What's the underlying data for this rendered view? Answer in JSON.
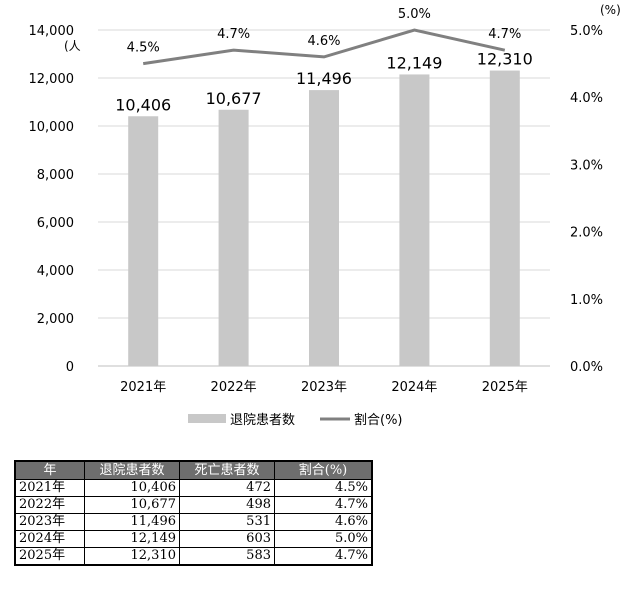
{
  "chart_data": {
    "type": "bar+line",
    "categories": [
      "2021年",
      "2022年",
      "2023年",
      "2024年",
      "2025年"
    ],
    "series": [
      {
        "name": "退院患者数",
        "type": "bar",
        "axis": "left",
        "values": [
          10406,
          10677,
          11496,
          12149,
          12310
        ],
        "labels": [
          "10,406",
          "10,677",
          "11,496",
          "12,149",
          "12,310"
        ],
        "color": "#c8c8c8"
      },
      {
        "name": "割合(%)",
        "type": "line",
        "axis": "right",
        "values": [
          4.5,
          4.7,
          4.6,
          5.0,
          4.7
        ],
        "labels": [
          "4.5%",
          "4.7%",
          "4.6%",
          "5.0%",
          "4.7%"
        ],
        "color": "#808080"
      }
    ],
    "y_left": {
      "unit": "(人",
      "ylim": [
        0,
        14000
      ],
      "ticks": [
        "0",
        "2,000",
        "4,000",
        "6,000",
        "8,000",
        "10,000",
        "12,000",
        "14,000"
      ]
    },
    "y_right": {
      "unit": "(%)",
      "ylim": [
        0,
        5.0
      ],
      "ticks": [
        "0.0%",
        "1.0%",
        "2.0%",
        "3.0%",
        "4.0%",
        "5.0%"
      ]
    },
    "grid": true,
    "legend": "bottom"
  },
  "table": {
    "headers": [
      "年",
      "退院患者数",
      "死亡患者数",
      "割合(%)"
    ],
    "rows": [
      [
        "2021年",
        "10,406",
        "472",
        "4.5%"
      ],
      [
        "2022年",
        "10,677",
        "498",
        "4.7%"
      ],
      [
        "2023年",
        "11,496",
        "531",
        "4.6%"
      ],
      [
        "2024年",
        "12,149",
        "603",
        "5.0%"
      ],
      [
        "2025年",
        "12,310",
        "583",
        "4.7%"
      ]
    ]
  }
}
